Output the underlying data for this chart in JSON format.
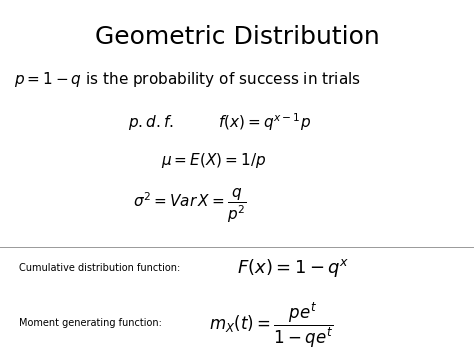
{
  "title": "Geometric Distribution",
  "title_fontsize": 18,
  "title_weight": "normal",
  "bg_color": "#ffffff",
  "text_color": "black",
  "line1_fontsize": 11,
  "line2_label_fontsize": 11,
  "line2_formula_fontsize": 11,
  "line3_fontsize": 11,
  "line4_fontsize": 11,
  "label_cdf": "Cumulative distribution function:",
  "label_cdf_fontsize": 7,
  "formula_cdf": "$F(x) = 1 - q^x$",
  "formula_cdf_fontsize": 13,
  "label_mgf": "Moment generating function:",
  "label_mgf_fontsize": 7,
  "formula_mgf": "$m_X(t) = \\dfrac{pe^t}{1 - qe^t}$",
  "formula_mgf_fontsize": 12
}
